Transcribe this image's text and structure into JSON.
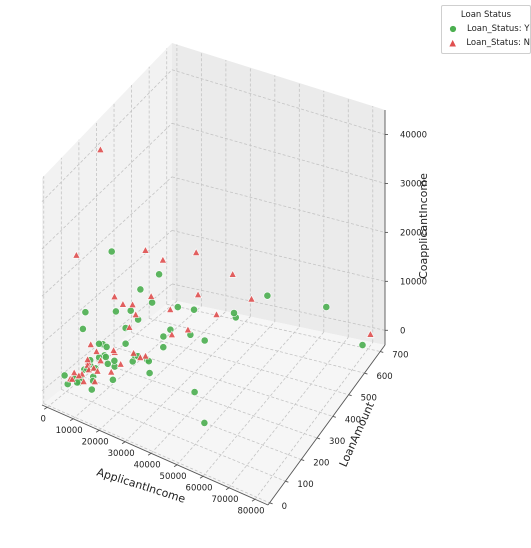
{
  "chart_data": {
    "type": "scatter",
    "projection": "3d",
    "xlabel": "ApplicantIncome",
    "ylabel": "LoanAmount",
    "zlabel": "CoapplicantIncome",
    "xlim": [
      -2000,
      85000
    ],
    "ylim": [
      -10,
      730
    ],
    "zlim": [
      -3000,
      45000
    ],
    "xticks": [
      "0",
      "10000",
      "20000",
      "30000",
      "40000",
      "50000",
      "60000",
      "70000",
      "80000"
    ],
    "yticks": [
      "0",
      "100",
      "200",
      "300",
      "400",
      "500",
      "600",
      "700"
    ],
    "zticks": [
      "0",
      "10000",
      "20000",
      "30000",
      "40000"
    ],
    "grid": true,
    "legend": {
      "title": "Loan Status",
      "position": "outside-top-right"
    },
    "series": [
      {
        "name": "Loan_Status: Y",
        "marker": "circle",
        "color": "#4caf50",
        "points": [
          [
            3000,
            120,
            0
          ],
          [
            3500,
            90,
            800
          ],
          [
            4200,
            140,
            1200
          ],
          [
            5000,
            100,
            0
          ],
          [
            5500,
            160,
            1500
          ],
          [
            6000,
            130,
            2000
          ],
          [
            2500,
            70,
            0
          ],
          [
            4800,
            110,
            500
          ],
          [
            3800,
            180,
            1800
          ],
          [
            7000,
            150,
            0
          ],
          [
            8000,
            200,
            3000
          ],
          [
            2000,
            60,
            2000
          ],
          [
            6500,
            170,
            1000
          ],
          [
            4500,
            95,
            0
          ],
          [
            9000,
            120,
            500
          ],
          [
            3200,
            260,
            2500
          ],
          [
            5800,
            240,
            1000
          ],
          [
            7500,
            220,
            4000
          ],
          [
            10000,
            190,
            2000
          ],
          [
            12000,
            200,
            1500
          ],
          [
            15000,
            260,
            1200
          ],
          [
            14000,
            160,
            500
          ],
          [
            18000,
            300,
            800
          ],
          [
            16500,
            250,
            3000
          ],
          [
            20000,
            280,
            1500
          ],
          [
            11000,
            350,
            6000
          ],
          [
            19000,
            380,
            3000
          ],
          [
            13000,
            320,
            0
          ],
          [
            22000,
            420,
            8000
          ],
          [
            9500,
            300,
            2500
          ],
          [
            8500,
            400,
            10000
          ],
          [
            25000,
            450,
            2000
          ],
          [
            28000,
            490,
            0
          ],
          [
            6000,
            380,
            6000
          ],
          [
            33000,
            600,
            1500
          ],
          [
            17000,
            450,
            1800
          ],
          [
            23000,
            500,
            5000
          ],
          [
            35000,
            560,
            4000
          ],
          [
            2500,
            250,
            0
          ],
          [
            4000,
            300,
            20000
          ],
          [
            12500,
            450,
            12000
          ],
          [
            39000,
            700,
            3000
          ],
          [
            6000,
            120,
            14000
          ],
          [
            3000,
            150,
            9000
          ],
          [
            10500,
            90,
            0
          ],
          [
            5200,
            210,
            4500
          ],
          [
            7800,
            260,
            0
          ],
          [
            21000,
            350,
            2200
          ],
          [
            8800,
            310,
            5200
          ],
          [
            63000,
            700,
            3500
          ],
          [
            81000,
            650,
            0
          ],
          [
            40000,
            250,
            0
          ],
          [
            51000,
            140,
            0
          ],
          [
            27000,
            180,
            3800
          ],
          [
            3600,
            330,
            7000
          ],
          [
            14500,
            380,
            9000
          ]
        ]
      },
      {
        "name": "Loan_Status: N",
        "marker": "triangle",
        "color": "#e05050",
        "points": [
          [
            3000,
            100,
            1500
          ],
          [
            4000,
            130,
            500
          ],
          [
            5000,
            150,
            2500
          ],
          [
            6000,
            110,
            0
          ],
          [
            3500,
            170,
            1000
          ],
          [
            7000,
            125,
            2200
          ],
          [
            4500,
            190,
            0
          ],
          [
            2800,
            80,
            800
          ],
          [
            5500,
            140,
            3500
          ],
          [
            8000,
            160,
            1000
          ],
          [
            3800,
            115,
            600
          ],
          [
            6500,
            200,
            1600
          ],
          [
            9000,
            130,
            0
          ],
          [
            4200,
            210,
            2700
          ],
          [
            2200,
            100,
            0
          ],
          [
            10000,
            230,
            3000
          ],
          [
            12000,
            180,
            1000
          ],
          [
            7500,
            260,
            2000
          ],
          [
            11000,
            300,
            6000
          ],
          [
            14000,
            280,
            2000
          ],
          [
            16000,
            320,
            500
          ],
          [
            18000,
            260,
            2500
          ],
          [
            13000,
            220,
            1500
          ],
          [
            9500,
            340,
            9000
          ],
          [
            21000,
            400,
            3000
          ],
          [
            24000,
            450,
            2800
          ],
          [
            15500,
            360,
            11000
          ],
          [
            19000,
            420,
            7000
          ],
          [
            5000,
            350,
            8000
          ],
          [
            30000,
            530,
            4000
          ],
          [
            6500,
            280,
            12000
          ],
          [
            4000,
            180,
            5000
          ],
          [
            2500,
            120,
            25000
          ],
          [
            3000,
            250,
            42000
          ],
          [
            17000,
            600,
            12000
          ],
          [
            14000,
            450,
            15000
          ],
          [
            29000,
            640,
            8000
          ],
          [
            38000,
            620,
            5000
          ],
          [
            81000,
            700,
            0
          ],
          [
            10500,
            400,
            18000
          ],
          [
            8000,
            380,
            5500
          ],
          [
            26000,
            480,
            9000
          ]
        ]
      }
    ]
  }
}
